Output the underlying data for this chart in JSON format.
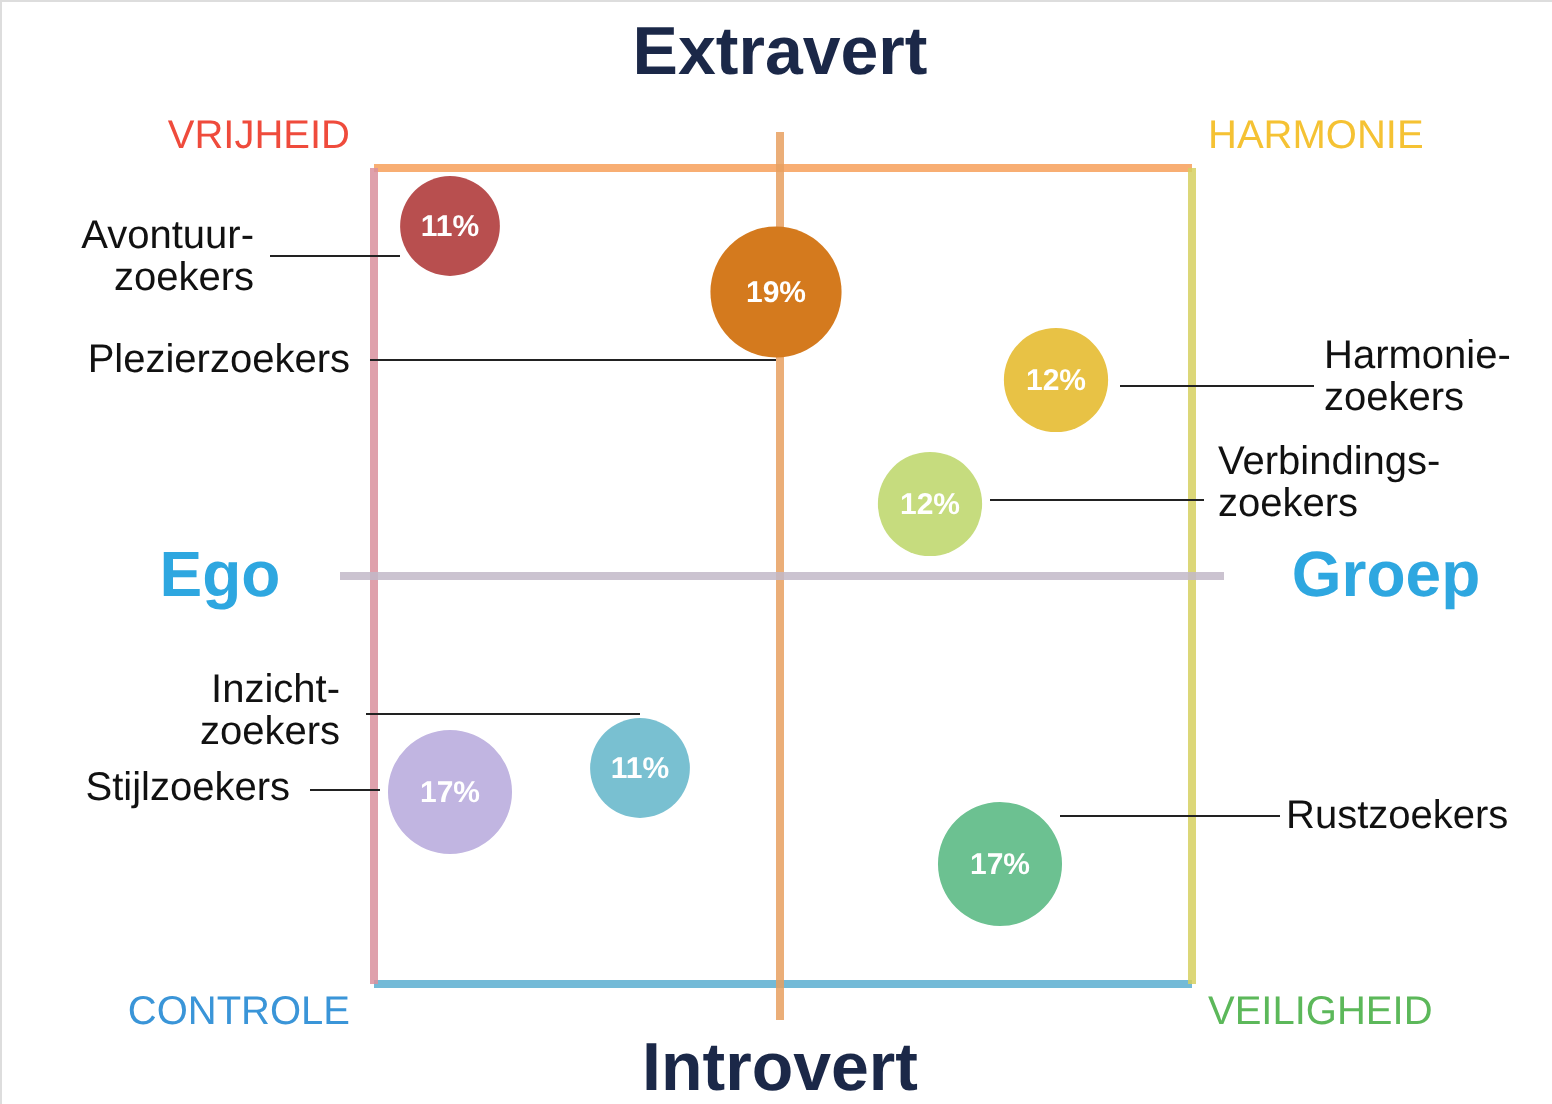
{
  "chart_data": {
    "type": "other",
    "title": "Extravert",
    "xlabel": "Introvert",
    "categories": [
      "Avontuur-zoekers",
      "Plezierzoekers",
      "Harmonie-zoekers",
      "Verbindings-zoekers",
      "Inzicht-zoekers",
      "Stijlzoekers",
      "Rustzoekers"
    ],
    "values": [
      11,
      19,
      12,
      12,
      11,
      17,
      17
    ],
    "value_labels": [
      "11%",
      "19%",
      "12%",
      "12%",
      "11%",
      "17%",
      "17%"
    ],
    "colors": [
      "#b84f4f",
      "#d47a1e",
      "#e8c245",
      "#c6dc7e",
      "#79c0d1",
      "#c1b5e1",
      "#6cc191"
    ],
    "annotations": [
      "VRIJHEID",
      "HARMONIE",
      "CONTROLE",
      "VEILIGHEID",
      "Ego",
      "Groep"
    ]
  }
}
